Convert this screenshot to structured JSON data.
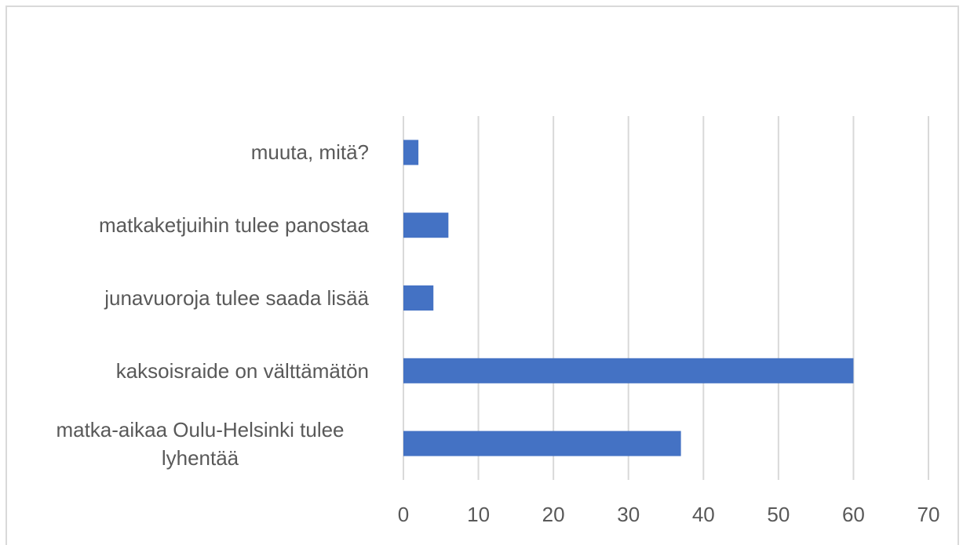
{
  "chart_data": {
    "type": "hbar",
    "categories": [
      "matka-aikaa Oulu-Helsinki tulee lyhentää",
      "kaksoisraide on välttämätön",
      "junavuoroja tulee saada lisää",
      "matkaketjuihin tulee panostaa",
      "muuta, mitä?"
    ],
    "values": [
      37,
      60,
      4,
      6,
      2
    ],
    "color": "#4472c4",
    "xlim": [
      0,
      70
    ],
    "xticks": [
      0,
      10,
      20,
      30,
      40,
      50,
      60,
      70
    ],
    "grid": true
  }
}
